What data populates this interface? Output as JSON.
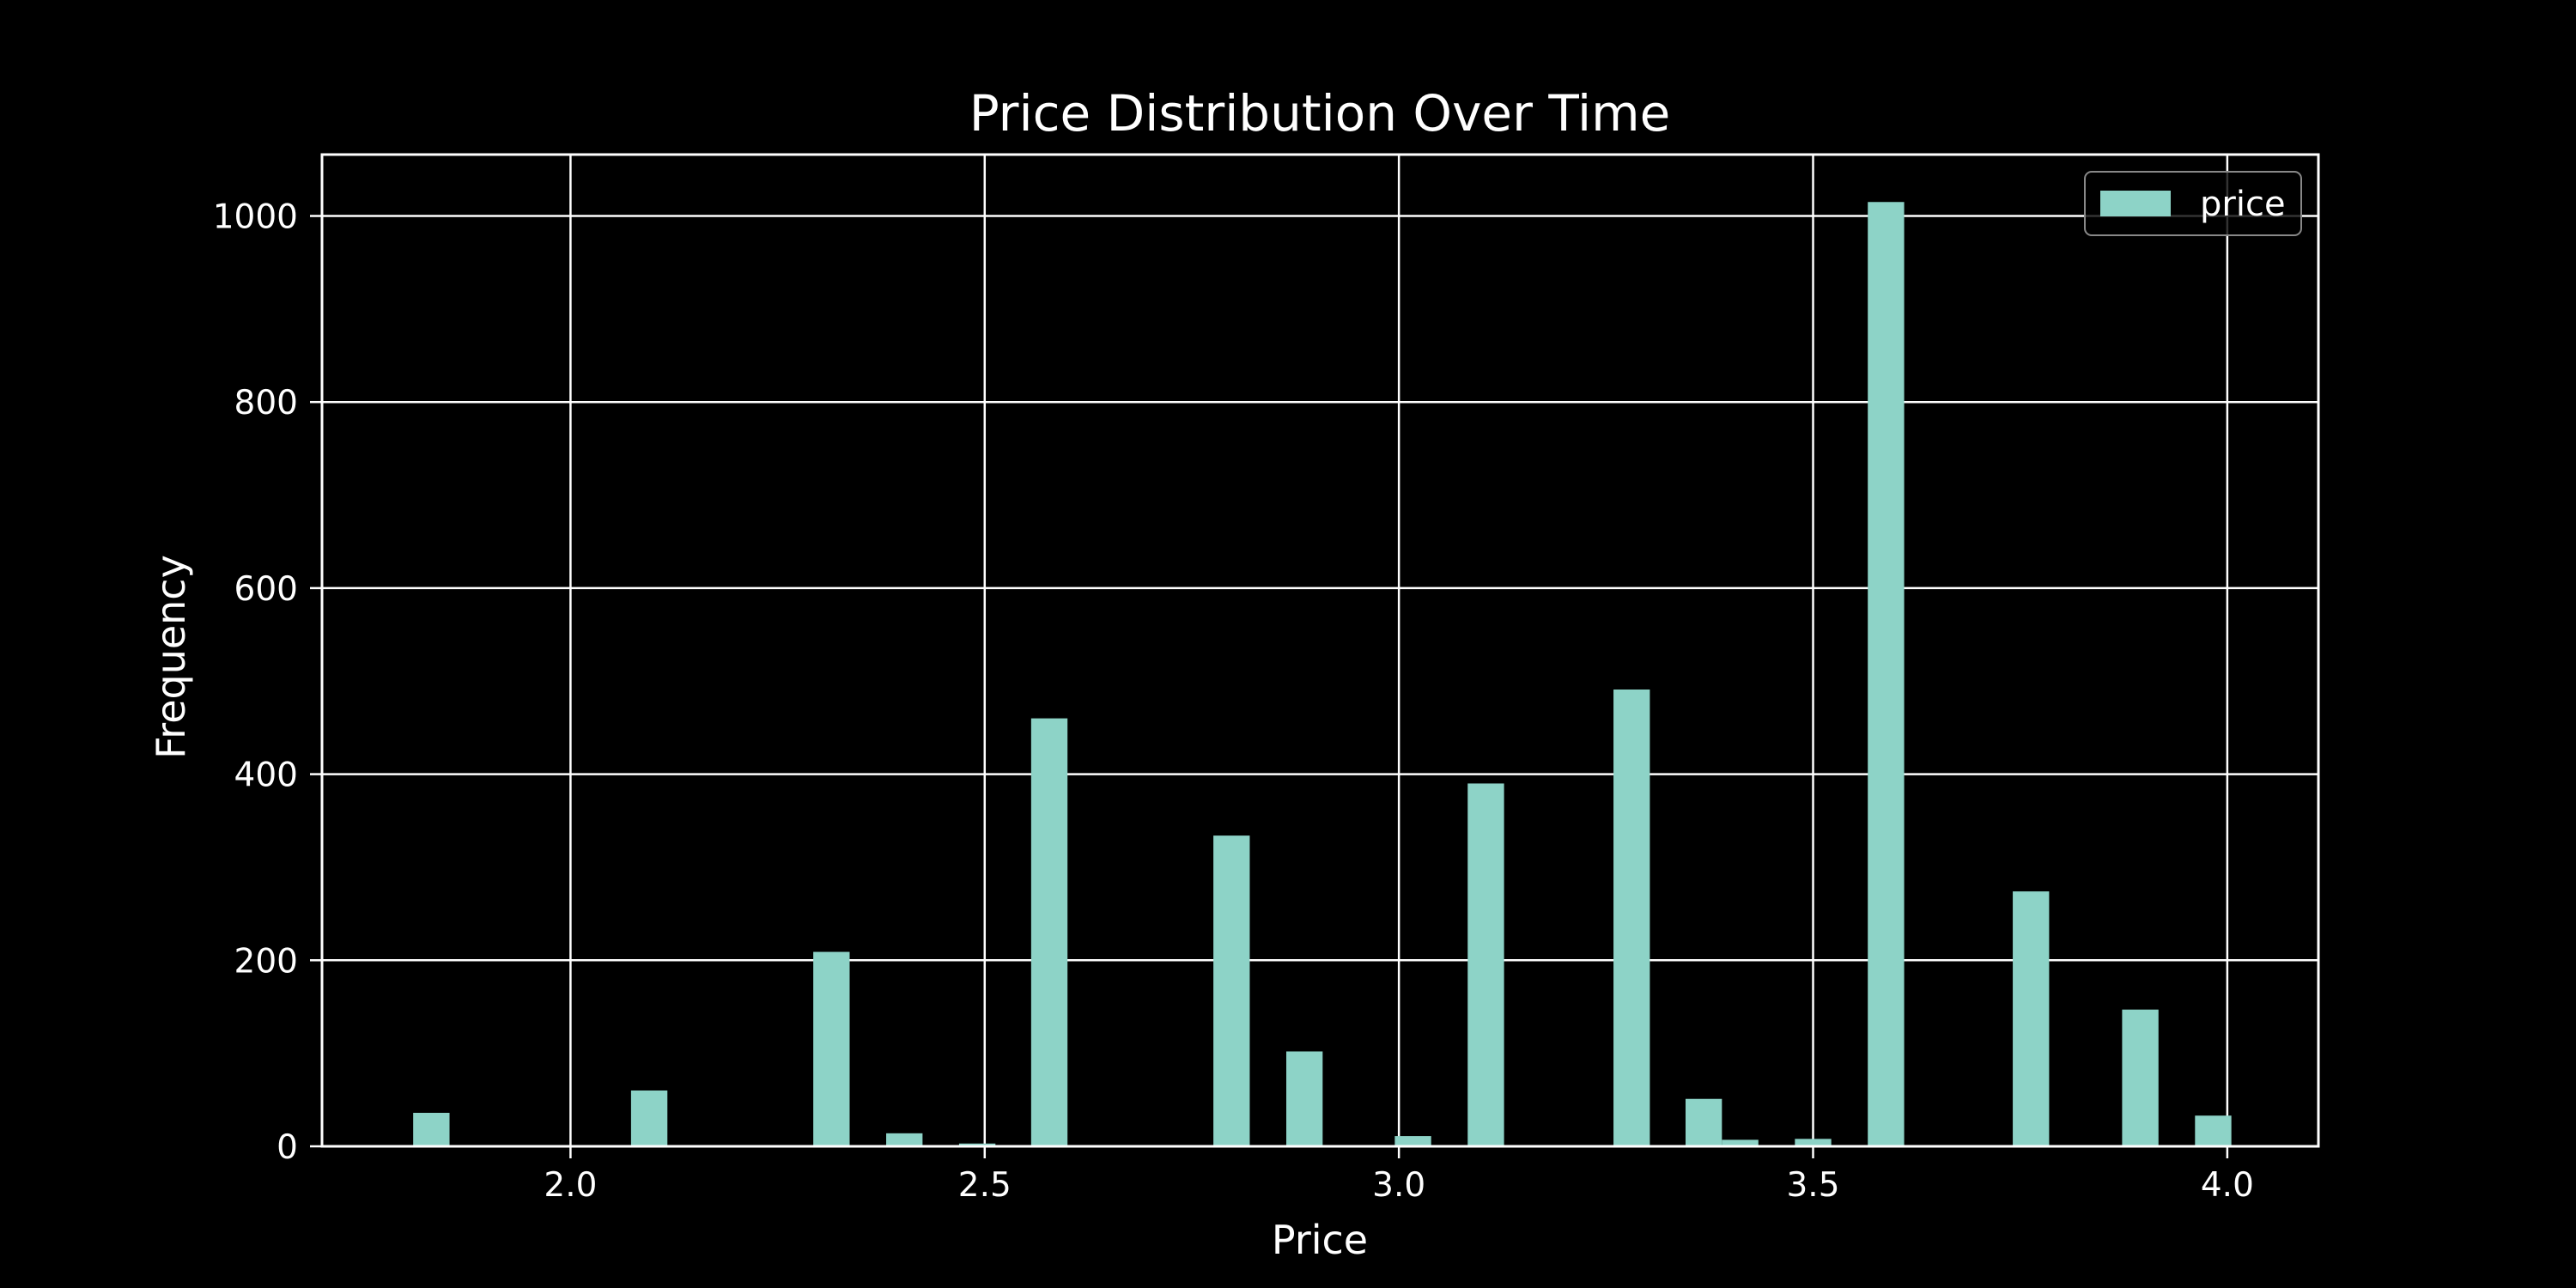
{
  "chart_data": {
    "type": "bar",
    "title": "Price Distribution Over Time",
    "xlabel": "Price",
    "ylabel": "Frequency",
    "xlim": [
      1.7,
      4.11
    ],
    "ylim": [
      0,
      1066
    ],
    "xticks": [
      2.0,
      2.5,
      3.0,
      3.5,
      4.0
    ],
    "xtick_labels": [
      "2.0",
      "2.5",
      "3.0",
      "3.5",
      "4.0"
    ],
    "yticks": [
      0,
      200,
      400,
      600,
      800,
      1000
    ],
    "ytick_labels": [
      "0",
      "200",
      "400",
      "600",
      "800",
      "1000"
    ],
    "bin_width": 0.0439,
    "grid": true,
    "legend": "top-right",
    "series": [
      {
        "name": "price",
        "color": "#8dd3c7",
        "bins": [
          {
            "x": 1.832,
            "value": 36
          },
          {
            "x": 2.095,
            "value": 60
          },
          {
            "x": 2.315,
            "value": 209
          },
          {
            "x": 2.403,
            "value": 14
          },
          {
            "x": 2.491,
            "value": 3
          },
          {
            "x": 2.578,
            "value": 460
          },
          {
            "x": 2.798,
            "value": 334
          },
          {
            "x": 2.886,
            "value": 102
          },
          {
            "x": 3.017,
            "value": 11
          },
          {
            "x": 3.105,
            "value": 390
          },
          {
            "x": 3.281,
            "value": 491
          },
          {
            "x": 3.368,
            "value": 51
          },
          {
            "x": 3.412,
            "value": 7
          },
          {
            "x": 3.5,
            "value": 8
          },
          {
            "x": 3.588,
            "value": 1015
          },
          {
            "x": 3.763,
            "value": 274
          },
          {
            "x": 3.895,
            "value": 147
          },
          {
            "x": 3.983,
            "value": 33
          }
        ]
      }
    ]
  }
}
